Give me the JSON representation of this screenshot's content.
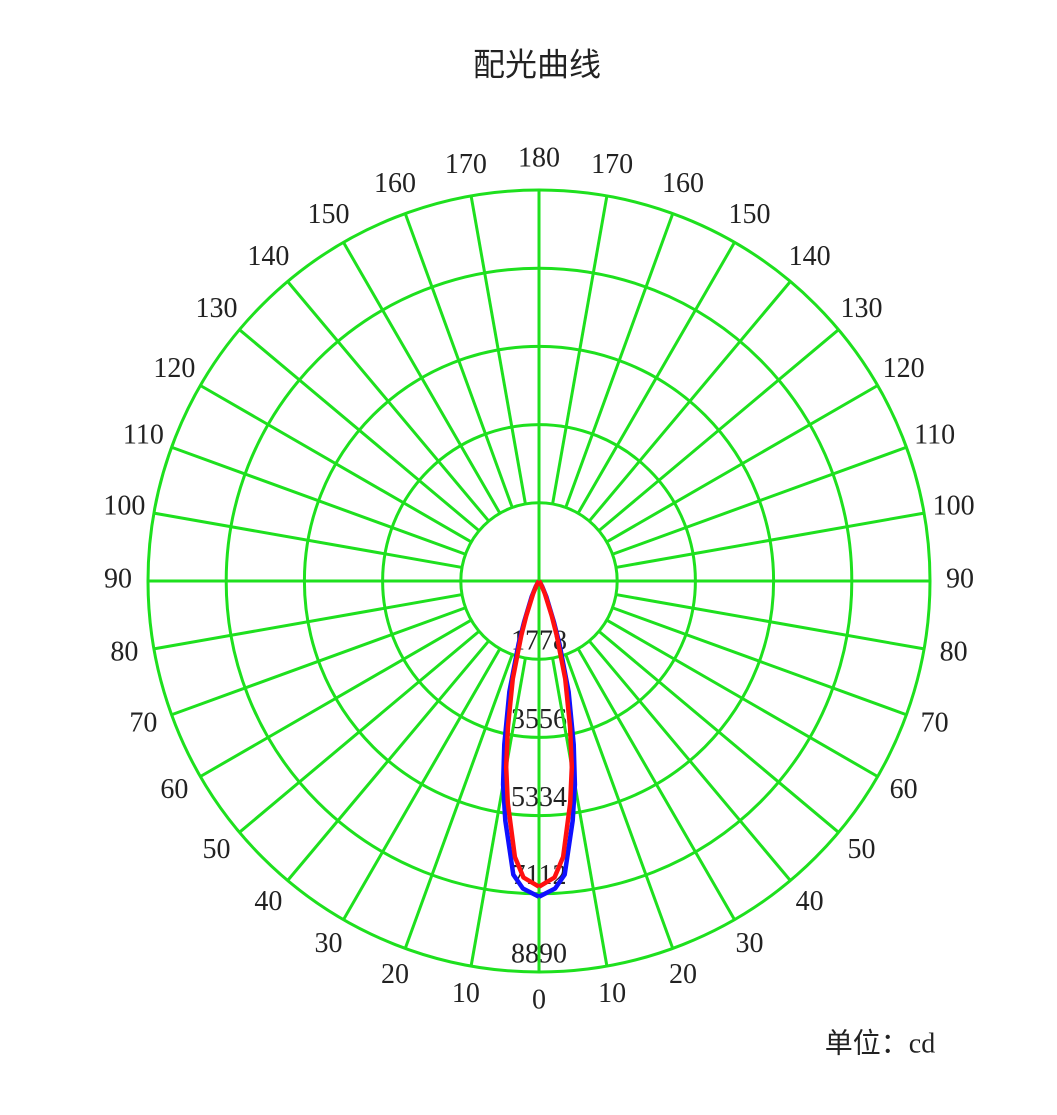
{
  "chart_data": {
    "type": "polar",
    "title": "配光曲线",
    "unit_label": "单位：cd",
    "rlim": [
      0,
      8890
    ],
    "rticks": [
      1778,
      3556,
      5334,
      7112,
      8890
    ],
    "angle_ticks": [
      0,
      10,
      20,
      30,
      40,
      50,
      60,
      70,
      80,
      90,
      100,
      110,
      120,
      130,
      140,
      150,
      160,
      170,
      180
    ],
    "grid_color": "#1ee01e",
    "x": [
      0,
      3,
      5,
      8,
      10,
      12,
      15,
      18,
      20,
      25,
      30,
      40,
      60,
      90
    ],
    "series": [
      {
        "color": "#1010ff",
        "values": [
          7180,
          7000,
          6700,
          5500,
          4700,
          3800,
          2600,
          1500,
          1000,
          400,
          150,
          30,
          0,
          0
        ]
      },
      {
        "color": "#ff1010",
        "values": [
          6950,
          6750,
          6300,
          5100,
          4300,
          3400,
          2300,
          1300,
          850,
          320,
          110,
          20,
          0,
          0
        ]
      }
    ]
  }
}
